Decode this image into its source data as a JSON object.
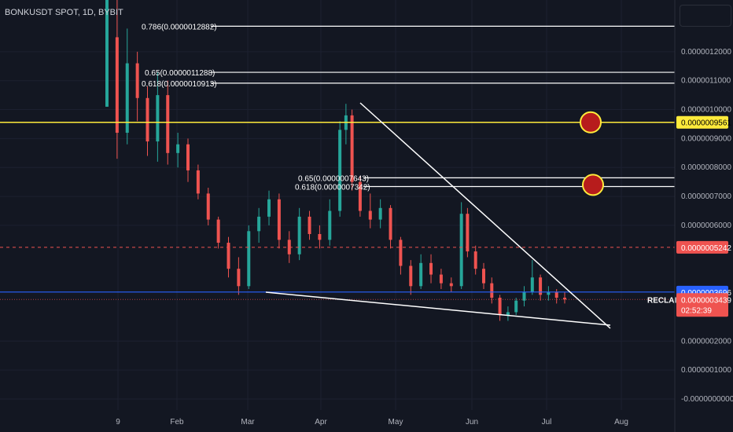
{
  "header": {
    "symbol_title": "BONKUSDT SPOT, 1D, BYBIT"
  },
  "colors": {
    "background": "#131722",
    "grid": "#1c2030",
    "up": "#26a69a",
    "down": "#ef5350",
    "fib_line": "#ffffff",
    "yellow_line": "#ffeb3b",
    "blue_line": "#2962ff",
    "red_dashed": "#ef5350",
    "circle_fill": "#b71c1c",
    "circle_stroke": "#ffeb3b"
  },
  "chart_data": {
    "type": "candlestick",
    "x_axis": {
      "ticks": [
        "9",
        "Feb",
        "Mar",
        "Apr",
        "May",
        "Jun",
        "Jul",
        "Aug"
      ]
    },
    "y_axis": {
      "range": [
        -0.0,
        1.3e-06
      ],
      "ticks": [
        {
          "value": 1.2e-06,
          "label": "0.0000012000"
        },
        {
          "value": 1.1e-06,
          "label": "0.0000011000"
        },
        {
          "value": 1e-06,
          "label": "0.0000010000"
        },
        {
          "value": 9e-07,
          "label": "0.0000009000"
        },
        {
          "value": 8e-07,
          "label": "0.0000008000"
        },
        {
          "value": 7e-07,
          "label": "0.0000007000"
        },
        {
          "value": 6e-07,
          "label": "0.0000006000"
        },
        {
          "value": 2e-07,
          "label": "0.0000002000"
        },
        {
          "value": 1e-07,
          "label": "0.0000001000"
        },
        {
          "value": -0.0,
          "label": "-0.0000000000"
        }
      ]
    },
    "fib_levels": [
      {
        "label": "0.786(0.0000012882)",
        "value": 1.2882e-06
      },
      {
        "label": "0.65(0.0000011288)",
        "value": 1.1288e-06
      },
      {
        "label": "0.618(0.0000010913)",
        "value": 1.0913e-06
      },
      {
        "label": "0.65(0.0000007643)",
        "value": 7.643e-07
      },
      {
        "label": "0.618(0.0000007342)",
        "value": 7.342e-07
      }
    ],
    "horizontal_lines": [
      {
        "name": "resistance",
        "value": 9.561e-07,
        "label": "0.0000009561"
      },
      {
        "name": "red-level",
        "value": 5.242e-07,
        "label": "0.0000005242"
      },
      {
        "name": "reclaim",
        "value": 3.696e-07,
        "label": "0.0000003696"
      }
    ],
    "current_price": {
      "value": 3.439e-07,
      "label": "0.0000003439",
      "countdown": "02:52:39"
    },
    "annotations": [
      {
        "text": "RECLAIM"
      }
    ],
    "trendlines": [
      {
        "name": "descending-resistance",
        "from": [
          "Apr 15",
          1.02e-06
        ],
        "to": [
          "Jul 25",
          2.45e-07
        ]
      },
      {
        "name": "descending-support",
        "from": [
          "Mar 10",
          3.6e-07
        ],
        "to": [
          "Jul 25",
          2.6e-07
        ]
      }
    ],
    "markers": [
      {
        "name": "target-circle-1",
        "value": 9.561e-07
      },
      {
        "name": "target-circle-2",
        "value": 7.4e-07
      }
    ],
    "candles": [
      {
        "t": 0,
        "o": 1.01e-06,
        "h": 1.5e-06,
        "l": 1.01e-06,
        "c": 1.5e-06
      },
      {
        "t": 5,
        "o": 1.25e-06,
        "h": 1.4e-06,
        "l": 8.3e-07,
        "c": 9.2e-07
      },
      {
        "t": 10,
        "o": 9.2e-07,
        "h": 1.28e-06,
        "l": 8.8e-07,
        "c": 1.16e-06
      },
      {
        "t": 15,
        "o": 1.16e-06,
        "h": 1.2e-06,
        "l": 9.6e-07,
        "c": 1.04e-06
      },
      {
        "t": 20,
        "o": 1.04e-06,
        "h": 1.08e-06,
        "l": 8.4e-07,
        "c": 8.9e-07
      },
      {
        "t": 25,
        "o": 8.9e-07,
        "h": 1.13e-06,
        "l": 8.2e-07,
        "c": 1.05e-06
      },
      {
        "t": 30,
        "o": 1.05e-06,
        "h": 1.1e-06,
        "l": 8.1e-07,
        "c": 8.5e-07
      },
      {
        "t": 35,
        "o": 8.5e-07,
        "h": 9.2e-07,
        "l": 8e-07,
        "c": 8.8e-07
      },
      {
        "t": 40,
        "o": 8.8e-07,
        "h": 9e-07,
        "l": 7.5e-07,
        "c": 7.9e-07
      },
      {
        "t": 45,
        "o": 7.9e-07,
        "h": 8.1e-07,
        "l": 6.9e-07,
        "c": 7.1e-07
      },
      {
        "t": 50,
        "o": 7.1e-07,
        "h": 7.3e-07,
        "l": 6e-07,
        "c": 6.2e-07
      },
      {
        "t": 55,
        "o": 6.2e-07,
        "h": 6.3e-07,
        "l": 5.2e-07,
        "c": 5.4e-07
      },
      {
        "t": 60,
        "o": 5.4e-07,
        "h": 5.6e-07,
        "l": 4.2e-07,
        "c": 4.5e-07
      },
      {
        "t": 65,
        "o": 4.5e-07,
        "h": 4.9e-07,
        "l": 3.6e-07,
        "c": 3.9e-07
      },
      {
        "t": 70,
        "o": 3.9e-07,
        "h": 6e-07,
        "l": 3.8e-07,
        "c": 5.8e-07
      },
      {
        "t": 75,
        "o": 5.8e-07,
        "h": 6.6e-07,
        "l": 5.4e-07,
        "c": 6.3e-07
      },
      {
        "t": 80,
        "o": 6.3e-07,
        "h": 7.2e-07,
        "l": 6e-07,
        "c": 6.9e-07
      },
      {
        "t": 85,
        "o": 6.9e-07,
        "h": 7.1e-07,
        "l": 5.2e-07,
        "c": 5.5e-07
      },
      {
        "t": 90,
        "o": 5.5e-07,
        "h": 5.8e-07,
        "l": 4.7e-07,
        "c": 5e-07
      },
      {
        "t": 95,
        "o": 5e-07,
        "h": 6.6e-07,
        "l": 4.8e-07,
        "c": 6.3e-07
      },
      {
        "t": 100,
        "o": 6.3e-07,
        "h": 6.5e-07,
        "l": 5.5e-07,
        "c": 5.7e-07
      },
      {
        "t": 105,
        "o": 5.7e-07,
        "h": 6e-07,
        "l": 5.2e-07,
        "c": 5.5e-07
      },
      {
        "t": 110,
        "o": 5.5e-07,
        "h": 6.9e-07,
        "l": 5.3e-07,
        "c": 6.5e-07
      },
      {
        "t": 115,
        "o": 6.5e-07,
        "h": 9.6e-07,
        "l": 6.3e-07,
        "c": 9.3e-07
      },
      {
        "t": 118,
        "o": 9.3e-07,
        "h": 1.02e-06,
        "l": 8.8e-07,
        "c": 9.8e-07
      },
      {
        "t": 121,
        "o": 9.8e-07,
        "h": 1e-06,
        "l": 7.2e-07,
        "c": 7.5e-07
      },
      {
        "t": 125,
        "o": 7.5e-07,
        "h": 7.7e-07,
        "l": 6.3e-07,
        "c": 6.5e-07
      },
      {
        "t": 130,
        "o": 6.5e-07,
        "h": 7.1e-07,
        "l": 5.9e-07,
        "c": 6.2e-07
      },
      {
        "t": 135,
        "o": 6.2e-07,
        "h": 6.9e-07,
        "l": 5.9e-07,
        "c": 6.6e-07
      },
      {
        "t": 140,
        "o": 6.6e-07,
        "h": 6.7e-07,
        "l": 5.2e-07,
        "c": 5.5e-07
      },
      {
        "t": 145,
        "o": 5.5e-07,
        "h": 5.6e-07,
        "l": 4.3e-07,
        "c": 4.6e-07
      },
      {
        "t": 150,
        "o": 4.6e-07,
        "h": 4.8e-07,
        "l": 3.6e-07,
        "c": 3.9e-07
      },
      {
        "t": 155,
        "o": 3.9e-07,
        "h": 5e-07,
        "l": 3.8e-07,
        "c": 4.7e-07
      },
      {
        "t": 160,
        "o": 4.7e-07,
        "h": 5e-07,
        "l": 4e-07,
        "c": 4.3e-07
      },
      {
        "t": 165,
        "o": 4.3e-07,
        "h": 4.5e-07,
        "l": 3.8e-07,
        "c": 4e-07
      },
      {
        "t": 170,
        "o": 4e-07,
        "h": 4.2e-07,
        "l": 3.7e-07,
        "c": 3.9e-07
      },
      {
        "t": 175,
        "o": 3.9e-07,
        "h": 6.8e-07,
        "l": 3.8e-07,
        "c": 6.4e-07
      },
      {
        "t": 178,
        "o": 6.4e-07,
        "h": 6.6e-07,
        "l": 4.9e-07,
        "c": 5.1e-07
      },
      {
        "t": 182,
        "o": 5.1e-07,
        "h": 5.3e-07,
        "l": 4.3e-07,
        "c": 4.5e-07
      },
      {
        "t": 186,
        "o": 4.5e-07,
        "h": 4.7e-07,
        "l": 3.8e-07,
        "c": 4e-07
      },
      {
        "t": 190,
        "o": 4e-07,
        "h": 4.2e-07,
        "l": 3.3e-07,
        "c": 3.5e-07
      },
      {
        "t": 194,
        "o": 3.5e-07,
        "h": 3.6e-07,
        "l": 2.7e-07,
        "c": 2.9e-07
      },
      {
        "t": 198,
        "o": 2.9e-07,
        "h": 3.2e-07,
        "l": 2.7e-07,
        "c": 3e-07
      },
      {
        "t": 202,
        "o": 3e-07,
        "h": 3.5e-07,
        "l": 2.9e-07,
        "c": 3.4e-07
      },
      {
        "t": 206,
        "o": 3.4e-07,
        "h": 3.9e-07,
        "l": 3.2e-07,
        "c": 3.7e-07
      },
      {
        "t": 210,
        "o": 3.7e-07,
        "h": 4.8e-07,
        "l": 3.6e-07,
        "c": 4.2e-07
      },
      {
        "t": 214,
        "o": 4.2e-07,
        "h": 4.3e-07,
        "l": 3.4e-07,
        "c": 3.6e-07
      },
      {
        "t": 218,
        "o": 3.6e-07,
        "h": 3.9e-07,
        "l": 3.4e-07,
        "c": 3.7e-07
      },
      {
        "t": 222,
        "o": 3.7e-07,
        "h": 3.8e-07,
        "l": 3.3e-07,
        "c": 3.5e-07
      },
      {
        "t": 226,
        "o": 3.5e-07,
        "h": 3.7e-07,
        "l": 3.3e-07,
        "c": 3.439e-07
      }
    ]
  }
}
